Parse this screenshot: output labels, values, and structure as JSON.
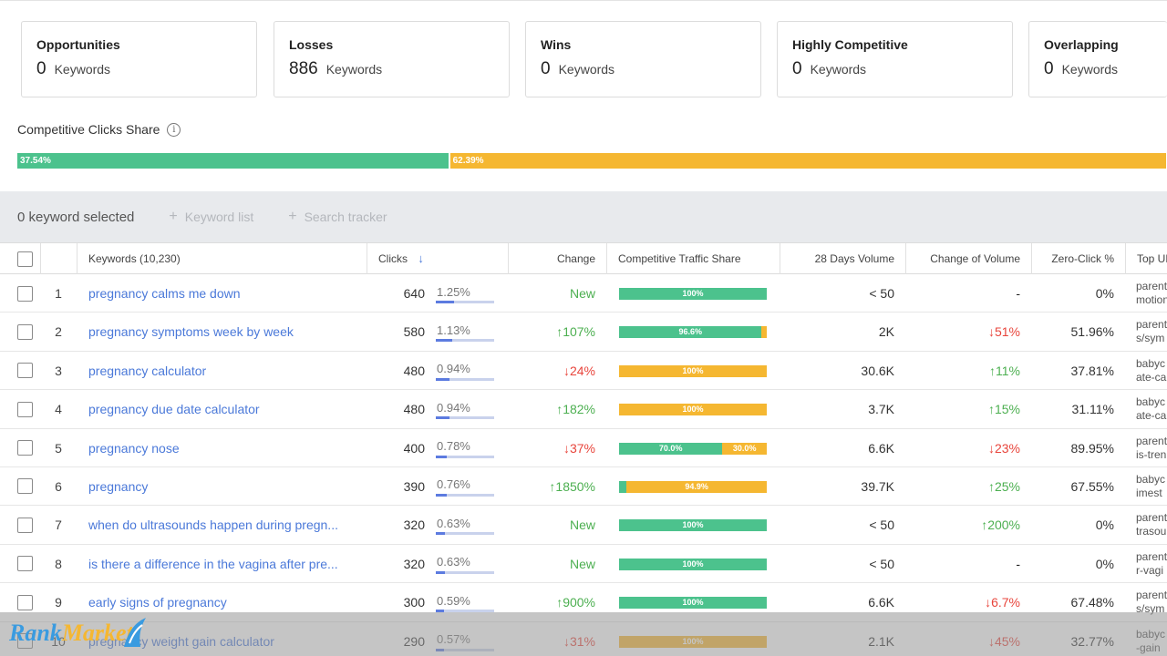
{
  "cards": [
    {
      "title": "Opportunities",
      "count": "0",
      "unit": "Keywords"
    },
    {
      "title": "Losses",
      "count": "886",
      "unit": "Keywords"
    },
    {
      "title": "Wins",
      "count": "0",
      "unit": "Keywords"
    },
    {
      "title": "Highly Competitive",
      "count": "0",
      "unit": "Keywords"
    },
    {
      "title": "Overlapping",
      "count": "0",
      "unit": "Keywords"
    }
  ],
  "share": {
    "title": "Competitive Clicks Share",
    "info_icon": "i",
    "segments": [
      {
        "label": "37.54%",
        "value": 37.54,
        "color": "#4cc28d"
      },
      {
        "label": "62.39%",
        "value": 62.39,
        "color": "#f5b731"
      }
    ]
  },
  "toolbar": {
    "selected": "0 keyword selected",
    "keyword_list": "Keyword list",
    "search_tracker": "Search tracker",
    "plus": "+"
  },
  "headers": {
    "keywords": "Keywords (10,230)",
    "clicks": "Clicks",
    "sort_arrow": "↓",
    "change": "Change",
    "cts": "Competitive Traffic Share",
    "volume": "28 Days Volume",
    "change_volume": "Change of Volume",
    "zero_click": "Zero-Click %",
    "top_url": "Top URL"
  },
  "rows": [
    {
      "n": "1",
      "kw": "pregnancy calms me down",
      "clicks": "640",
      "pct": "1.25%",
      "pct_val": 1.25,
      "change": "New",
      "change_dir": "new",
      "cts": [
        {
          "label": "100%",
          "value": 100,
          "c": "g"
        }
      ],
      "vol": "< 50",
      "cvol": "-",
      "cvol_dir": "none",
      "zero": "0%",
      "url1": "parents",
      "url2": "motion"
    },
    {
      "n": "2",
      "kw": "pregnancy symptoms week by week",
      "clicks": "580",
      "pct": "1.13%",
      "pct_val": 1.13,
      "change": "107%",
      "change_dir": "up",
      "cts": [
        {
          "label": "96.6%",
          "value": 96.6,
          "c": "g"
        },
        {
          "label": "",
          "value": 3.4,
          "c": "o"
        }
      ],
      "vol": "2K",
      "cvol": "51%",
      "cvol_dir": "down",
      "zero": "51.96%",
      "url1": "parents",
      "url2": "s/sym"
    },
    {
      "n": "3",
      "kw": "pregnancy calculator",
      "clicks": "480",
      "pct": "0.94%",
      "pct_val": 0.94,
      "change": "24%",
      "change_dir": "down",
      "cts": [
        {
          "label": "100%",
          "value": 100,
          "c": "o"
        }
      ],
      "vol": "30.6K",
      "cvol": "11%",
      "cvol_dir": "up",
      "zero": "37.81%",
      "url1": "babyc",
      "url2": "ate-ca"
    },
    {
      "n": "4",
      "kw": "pregnancy due date calculator",
      "clicks": "480",
      "pct": "0.94%",
      "pct_val": 0.94,
      "change": "182%",
      "change_dir": "up",
      "cts": [
        {
          "label": "100%",
          "value": 100,
          "c": "o"
        }
      ],
      "vol": "3.7K",
      "cvol": "15%",
      "cvol_dir": "up",
      "zero": "31.11%",
      "url1": "babyc",
      "url2": "ate-ca"
    },
    {
      "n": "5",
      "kw": "pregnancy nose",
      "clicks": "400",
      "pct": "0.78%",
      "pct_val": 0.78,
      "change": "37%",
      "change_dir": "down",
      "cts": [
        {
          "label": "70.0%",
          "value": 70,
          "c": "g"
        },
        {
          "label": "30.0%",
          "value": 30,
          "c": "o"
        }
      ],
      "vol": "6.6K",
      "cvol": "23%",
      "cvol_dir": "down",
      "zero": "89.95%",
      "url1": "parents",
      "url2": "is-tren"
    },
    {
      "n": "6",
      "kw": "pregnancy",
      "clicks": "390",
      "pct": "0.76%",
      "pct_val": 0.76,
      "change": "1850%",
      "change_dir": "up",
      "cts": [
        {
          "label": "",
          "value": 5.1,
          "c": "g"
        },
        {
          "label": "94.9%",
          "value": 94.9,
          "c": "o"
        }
      ],
      "vol": "39.7K",
      "cvol": "25%",
      "cvol_dir": "up",
      "zero": "67.55%",
      "url1": "babyc",
      "url2": "imest"
    },
    {
      "n": "7",
      "kw": "when do ultrasounds happen during pregn...",
      "clicks": "320",
      "pct": "0.63%",
      "pct_val": 0.63,
      "change": "New",
      "change_dir": "new",
      "cts": [
        {
          "label": "100%",
          "value": 100,
          "c": "g"
        }
      ],
      "vol": "< 50",
      "cvol": "200%",
      "cvol_dir": "up",
      "zero": "0%",
      "url1": "parents",
      "url2": "trasou"
    },
    {
      "n": "8",
      "kw": "is there a difference in the vagina after pre...",
      "clicks": "320",
      "pct": "0.63%",
      "pct_val": 0.63,
      "change": "New",
      "change_dir": "new",
      "cts": [
        {
          "label": "100%",
          "value": 100,
          "c": "g"
        }
      ],
      "vol": "< 50",
      "cvol": "-",
      "cvol_dir": "none",
      "zero": "0%",
      "url1": "parents",
      "url2": "r-vagi"
    },
    {
      "n": "9",
      "kw": "early signs of pregnancy",
      "clicks": "300",
      "pct": "0.59%",
      "pct_val": 0.59,
      "change": "900%",
      "change_dir": "up",
      "cts": [
        {
          "label": "100%",
          "value": 100,
          "c": "g"
        }
      ],
      "vol": "6.6K",
      "cvol": "6.7%",
      "cvol_dir": "down",
      "zero": "67.48%",
      "url1": "parents",
      "url2": "s/sym"
    },
    {
      "n": "10",
      "kw": "pregnancy weight gain calculator",
      "clicks": "290",
      "pct": "0.57%",
      "pct_val": 0.57,
      "change": "31%",
      "change_dir": "down",
      "cts": [
        {
          "label": "100%",
          "value": 100,
          "c": "o"
        }
      ],
      "vol": "2.1K",
      "cvol": "45%",
      "cvol_dir": "down",
      "zero": "32.77%",
      "url1": "babyc",
      "url2": "-gain"
    }
  ],
  "watermark": {
    "part1": "Rank",
    "part2": "Market"
  },
  "colors": {
    "green": "#4cc28d",
    "orange": "#f5b731",
    "link": "#4b79d9",
    "up": "#4caf50",
    "down": "#e8453c"
  }
}
